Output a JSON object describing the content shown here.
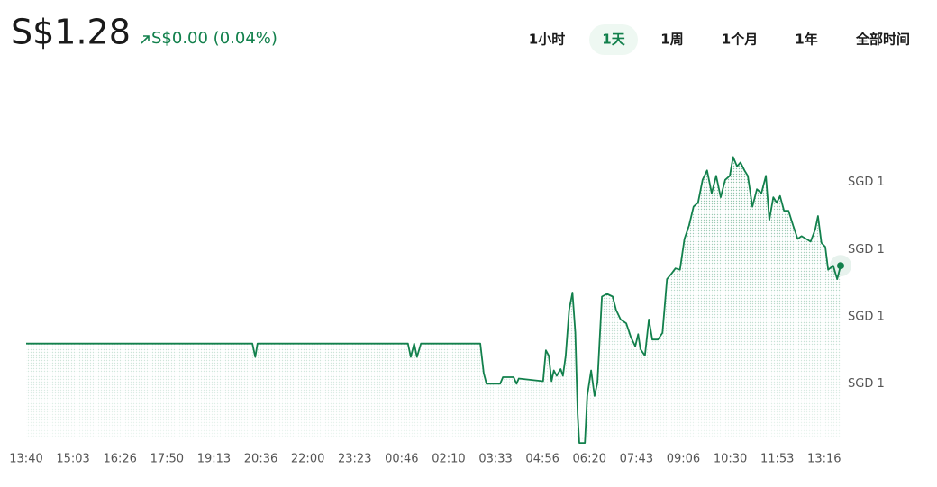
{
  "header": {
    "price": "S$1.28",
    "change": "S$0.00 (0.04%)",
    "ranges": [
      "1小时",
      "1天",
      "1周",
      "1个月",
      "1年",
      "全部时间"
    ],
    "selected_range": 1
  },
  "chart_data": {
    "type": "line",
    "color": "#12804c",
    "grid": false,
    "x": [
      0,
      400,
      405,
      409,
      675,
      680,
      686,
      691,
      698,
      803,
      809,
      814,
      838,
      843,
      862,
      867,
      871,
      914,
      919,
      924,
      929,
      933,
      938,
      945,
      949,
      954,
      960,
      966,
      971,
      975,
      978,
      988,
      992,
      999,
      1005,
      1010,
      1018,
      1027,
      1037,
      1043,
      1051,
      1061,
      1069,
      1077,
      1082,
      1086,
      1094,
      1101,
      1107,
      1117,
      1125,
      1133,
      1141,
      1148,
      1156,
      1164,
      1172,
      1180,
      1188,
      1196,
      1204,
      1212,
      1220,
      1228,
      1236,
      1244,
      1250,
      1257,
      1263,
      1270,
      1276,
      1284,
      1292,
      1300,
      1308,
      1314,
      1321,
      1327,
      1333,
      1340,
      1348,
      1356,
      1364,
      1371,
      1379,
      1387,
      1395,
      1400,
      1406,
      1413,
      1418,
      1427,
      1434,
      1440
    ],
    "series": [
      {
        "values": [
          1.2788,
          1.2788,
          1.2787,
          1.2788,
          1.2788,
          1.2787,
          1.2788,
          1.2787,
          1.2788,
          1.2788,
          1.27858,
          1.2785,
          1.2785,
          1.27855,
          1.27855,
          1.2785,
          1.27854,
          1.27852,
          1.27875,
          1.27871,
          1.27852,
          1.2786,
          1.27856,
          1.27861,
          1.27856,
          1.27871,
          1.27905,
          1.27918,
          1.27888,
          1.27828,
          1.27806,
          1.27806,
          1.27841,
          1.2786,
          1.27841,
          1.27851,
          1.27915,
          1.27917,
          1.27915,
          1.27905,
          1.27898,
          1.27895,
          1.27885,
          1.27878,
          1.27887,
          1.27876,
          1.27871,
          1.27898,
          1.27883,
          1.27883,
          1.27888,
          1.27928,
          1.27932,
          1.27936,
          1.27935,
          1.27958,
          1.27968,
          1.27982,
          1.27985,
          1.28002,
          1.28009,
          1.27992,
          1.28005,
          1.27989,
          1.28002,
          1.28005,
          1.28019,
          1.28012,
          1.28015,
          1.28009,
          1.28005,
          1.27982,
          1.27995,
          1.27992,
          1.28005,
          1.27972,
          1.27989,
          1.27985,
          1.2799,
          1.27979,
          1.27979,
          1.27968,
          1.27958,
          1.2796,
          1.27958,
          1.27956,
          1.27965,
          1.27975,
          1.27955,
          1.27952,
          1.27935,
          1.27938,
          1.27928,
          1.27938
        ]
      }
    ],
    "xlim": [
      0,
      1440
    ],
    "xticks": [
      {
        "value": 0,
        "label": "13:40"
      },
      {
        "value": 83,
        "label": "15:03"
      },
      {
        "value": 166,
        "label": "16:26"
      },
      {
        "value": 249,
        "label": "17:50"
      },
      {
        "value": 332,
        "label": "19:13"
      },
      {
        "value": 415,
        "label": "20:36"
      },
      {
        "value": 498,
        "label": "22:00"
      },
      {
        "value": 581,
        "label": "23:23"
      },
      {
        "value": 664,
        "label": "00:46"
      },
      {
        "value": 747,
        "label": "02:10"
      },
      {
        "value": 830,
        "label": "03:33"
      },
      {
        "value": 913,
        "label": "04:56"
      },
      {
        "value": 996,
        "label": "06:20"
      },
      {
        "value": 1079,
        "label": "07:43"
      },
      {
        "value": 1162,
        "label": "09:06"
      },
      {
        "value": 1245,
        "label": "10:30"
      },
      {
        "value": 1328,
        "label": "11:53"
      },
      {
        "value": 1411,
        "label": "13:16"
      }
    ],
    "ylim": [
      1.278,
      1.2803
    ],
    "yticks": [
      {
        "value": 1.28,
        "label": "SGD 1"
      },
      {
        "value": 1.2795,
        "label": "SGD 1"
      },
      {
        "value": 1.279,
        "label": "SGD 1"
      },
      {
        "value": 1.2785,
        "label": "SGD 1"
      }
    ]
  }
}
